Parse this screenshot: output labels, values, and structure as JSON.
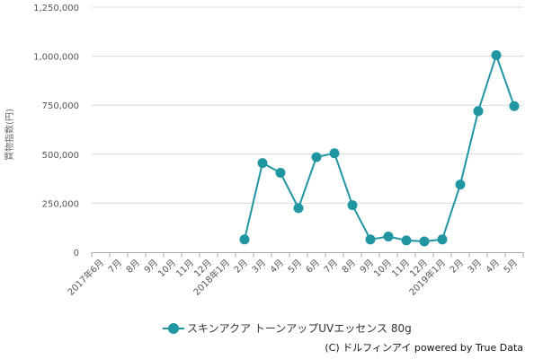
{
  "chart_data": {
    "type": "line",
    "title": "",
    "xlabel": "",
    "ylabel": "買物指数(円)",
    "ylim": [
      0,
      1250000
    ],
    "y_ticks": [
      0,
      250000,
      500000,
      750000,
      1000000,
      1250000
    ],
    "y_tick_labels": [
      "0",
      "250,000",
      "500,000",
      "750,000",
      "1,000,000",
      "1,250,000"
    ],
    "grid": true,
    "legend_position": "bottom",
    "categories": [
      "2017年6月",
      "7月",
      "8月",
      "9月",
      "10月",
      "11月",
      "12月",
      "2018年1月",
      "2月",
      "3月",
      "4月",
      "5月",
      "6月",
      "7月",
      "8月",
      "9月",
      "10月",
      "11月",
      "12月",
      "2019年1月",
      "2月",
      "3月",
      "4月",
      "5月"
    ],
    "series": [
      {
        "name": "スキンアクア トーンアップUVエッセンス 80g",
        "color": "#2196a3",
        "values": [
          null,
          null,
          null,
          null,
          null,
          null,
          null,
          null,
          65000,
          455000,
          405000,
          225000,
          485000,
          505000,
          240000,
          65000,
          80000,
          60000,
          55000,
          65000,
          345000,
          720000,
          1005000,
          745000
        ]
      }
    ],
    "credit": "(C) ドルフィンアイ powered by True Data"
  }
}
